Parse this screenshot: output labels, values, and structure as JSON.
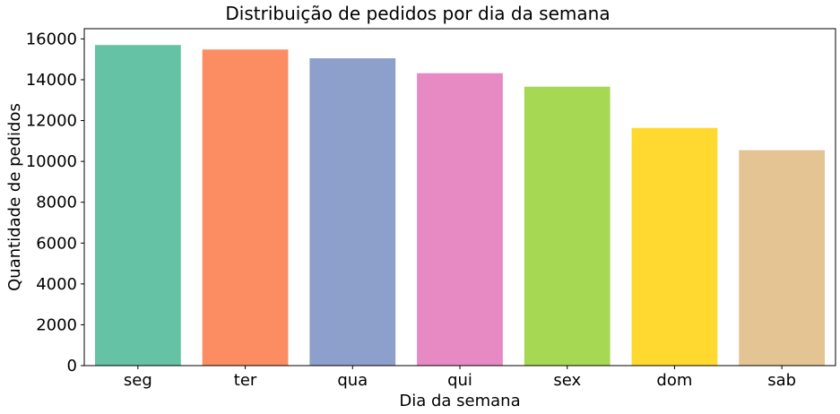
{
  "chart_data": {
    "type": "bar",
    "title": "Distribuição de pedidos por dia da semana",
    "xlabel": "Dia da semana",
    "ylabel": "Quantidade de pedidos",
    "categories": [
      "seg",
      "ter",
      "qua",
      "qui",
      "sex",
      "dom",
      "sab"
    ],
    "values": [
      15700,
      15480,
      15050,
      14320,
      13660,
      11640,
      10550
    ],
    "colors": [
      "#66c2a5",
      "#fc8d62",
      "#8da0cb",
      "#e78ac3",
      "#a6d854",
      "#ffd92f",
      "#e5c494"
    ],
    "yticks": [
      0,
      2000,
      4000,
      6000,
      8000,
      10000,
      12000,
      14000,
      16000
    ],
    "ylim": [
      0,
      16500
    ],
    "grid": false,
    "legend": "none"
  }
}
